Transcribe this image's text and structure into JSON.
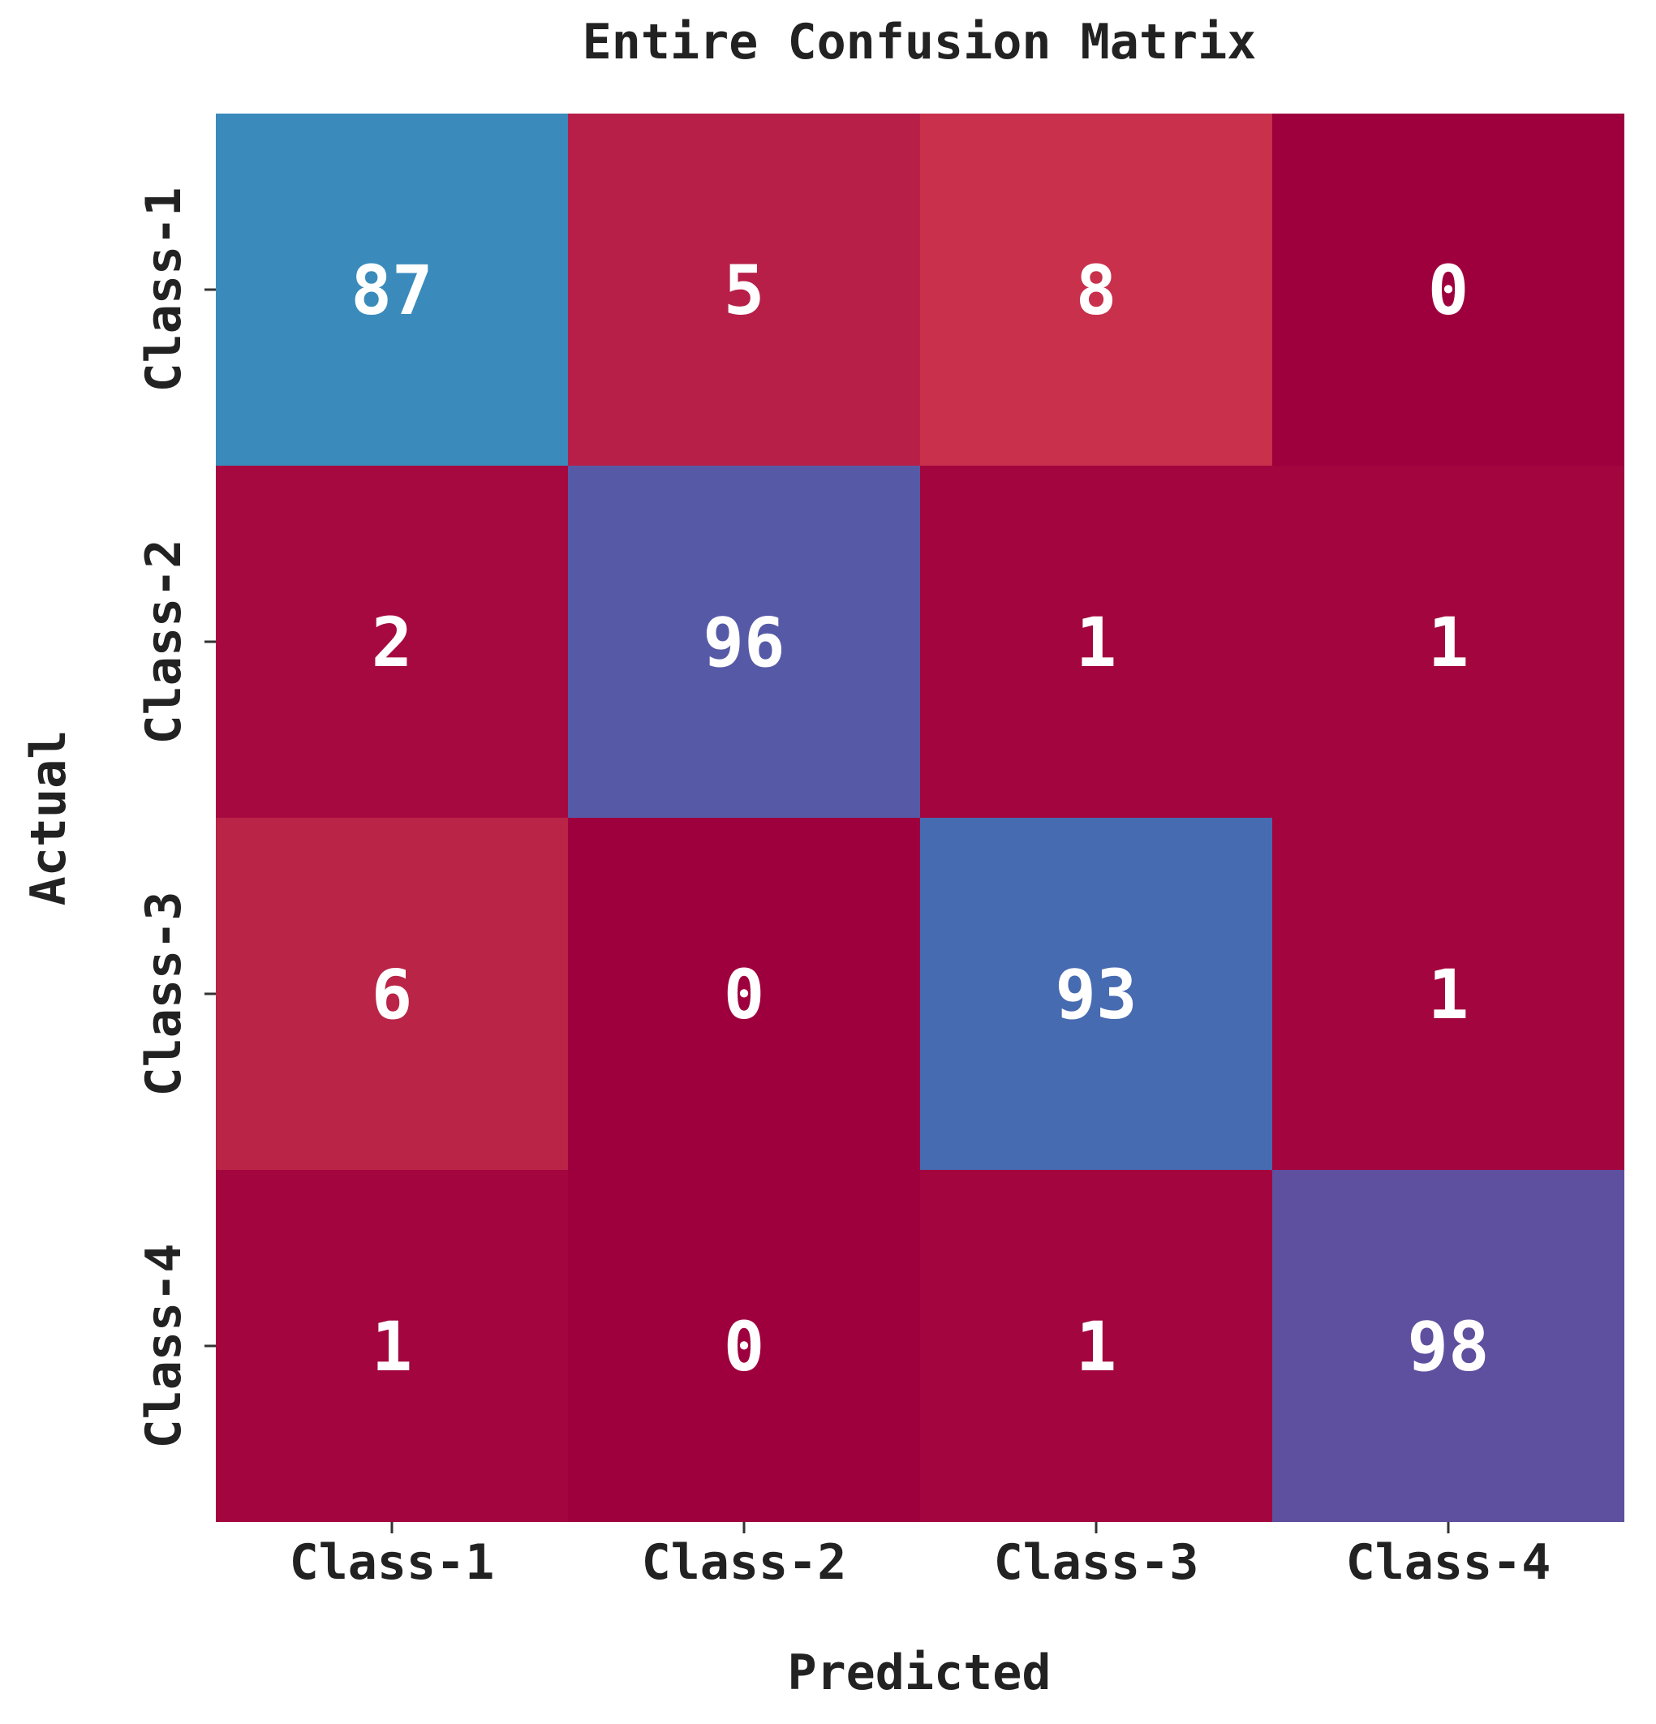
{
  "chart_data": {
    "type": "heatmap",
    "title": "Entire Confusion Matrix",
    "xlabel": "Predicted",
    "ylabel": "Actual",
    "x_categories": [
      "Class-1",
      "Class-2",
      "Class-3",
      "Class-4"
    ],
    "y_categories": [
      "Class-1",
      "Class-2",
      "Class-3",
      "Class-4"
    ],
    "values": [
      [
        87,
        5,
        8,
        0
      ],
      [
        2,
        96,
        1,
        1
      ],
      [
        6,
        0,
        93,
        1
      ],
      [
        1,
        0,
        1,
        98
      ]
    ],
    "value_range": [
      0,
      98
    ],
    "colors": {
      "87": "#3a8bbb",
      "5": "#b71f48",
      "8": "#c8304c",
      "0": "#9e003e",
      "2": "#a6093f",
      "96": "#565aa6",
      "1": "#a3053f",
      "6": "#ba2447",
      "93": "#476bb1",
      "98": "#5f4f9f"
    },
    "annotation_color": "#ffffff",
    "grid": false,
    "legend": "none"
  }
}
